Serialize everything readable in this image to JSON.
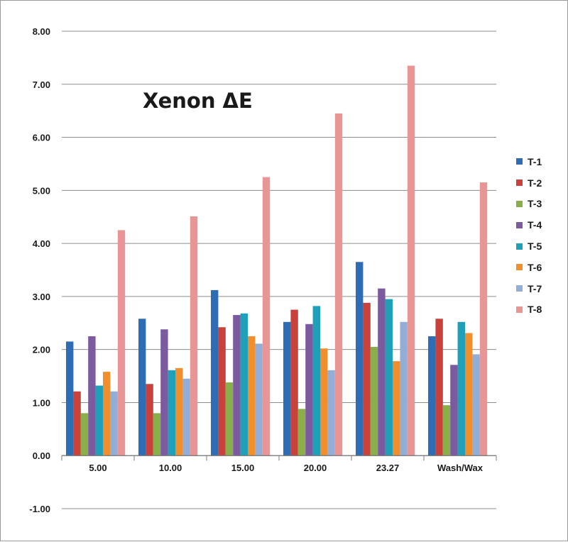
{
  "chart_data": {
    "type": "bar",
    "title": "Xenon ΔE",
    "xlabel": "",
    "ylabel": "",
    "ylim": [
      -1,
      8
    ],
    "yticks": [
      "8.00",
      "7.00",
      "6.00",
      "5.00",
      "4.00",
      "3.00",
      "2.00",
      "1.00",
      "0.00",
      "-1.00"
    ],
    "grid": "horizontal",
    "legend_position": "right",
    "categories": [
      "5.00",
      "10.00",
      "15.00",
      "20.00",
      "23.27",
      "Wash/Wax"
    ],
    "series": [
      {
        "name": "T-1",
        "color": "#2e6db4",
        "values": [
          2.15,
          2.58,
          3.12,
          2.52,
          3.65,
          2.25
        ]
      },
      {
        "name": "T-2",
        "color": "#c8413b",
        "values": [
          1.21,
          1.35,
          2.42,
          2.75,
          2.88,
          2.58
        ]
      },
      {
        "name": "T-3",
        "color": "#8aae4a",
        "values": [
          0.8,
          0.8,
          1.38,
          0.88,
          2.05,
          0.95
        ]
      },
      {
        "name": "T-4",
        "color": "#7b5aa0",
        "values": [
          2.25,
          2.38,
          2.65,
          2.48,
          3.15,
          1.71
        ]
      },
      {
        "name": "T-5",
        "color": "#1fa0b9",
        "values": [
          1.32,
          1.61,
          2.68,
          2.82,
          2.95,
          2.52
        ]
      },
      {
        "name": "T-6",
        "color": "#f18f2e",
        "values": [
          1.58,
          1.65,
          2.25,
          2.02,
          1.78,
          2.31
        ]
      },
      {
        "name": "T-7",
        "color": "#93aed6",
        "values": [
          1.21,
          1.45,
          2.11,
          1.61,
          2.52,
          1.91
        ]
      },
      {
        "name": "T-8",
        "color": "#e89595",
        "values": [
          4.25,
          4.51,
          5.25,
          6.45,
          7.35,
          5.15
        ]
      }
    ]
  }
}
